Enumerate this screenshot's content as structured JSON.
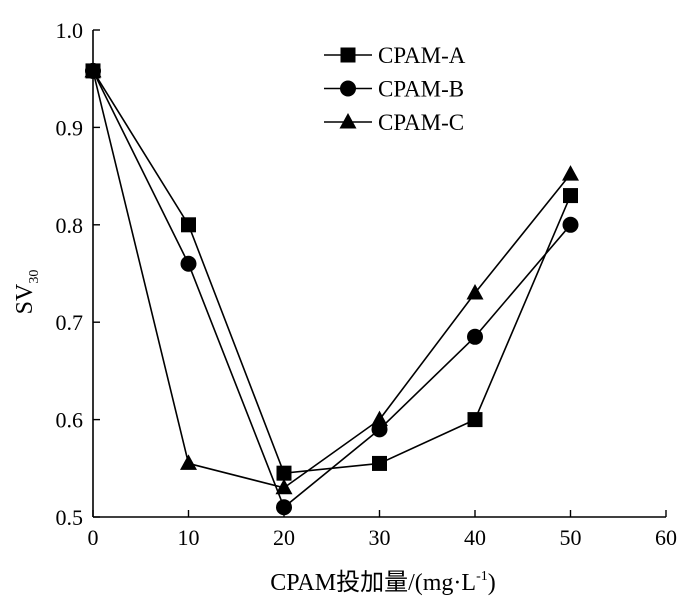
{
  "chart_data": {
    "type": "line",
    "title": "",
    "xlabel": "CPAM投加量/(mg·L",
    "xlabel_superscript": "-1",
    "xlabel_suffix": ")",
    "ylabel": "SV",
    "ylabel_subscript": "30",
    "xlim": [
      0,
      60
    ],
    "ylim": [
      0.5,
      1.0
    ],
    "x_ticks": [
      "0",
      "10",
      "20",
      "30",
      "40",
      "50",
      "60"
    ],
    "y_ticks": [
      "0.5",
      "0.6",
      "0.7",
      "0.8",
      "0.9",
      "1.0"
    ],
    "grid": false,
    "legend_position": "top-right",
    "series": [
      {
        "name": "CPAM-A",
        "marker": "square",
        "x": [
          0,
          10,
          20,
          30,
          40,
          50
        ],
        "y": [
          0.958,
          0.8,
          0.545,
          0.555,
          0.6,
          0.83
        ]
      },
      {
        "name": "CPAM-B",
        "marker": "circle",
        "x": [
          0,
          10,
          20,
          30,
          40,
          50
        ],
        "y": [
          0.958,
          0.76,
          0.51,
          0.59,
          0.685,
          0.8
        ]
      },
      {
        "name": "CPAM-C",
        "marker": "triangle",
        "x": [
          0,
          10,
          20,
          30,
          40,
          50
        ],
        "y": [
          0.958,
          0.555,
          0.53,
          0.6,
          0.73,
          0.852
        ]
      }
    ]
  }
}
